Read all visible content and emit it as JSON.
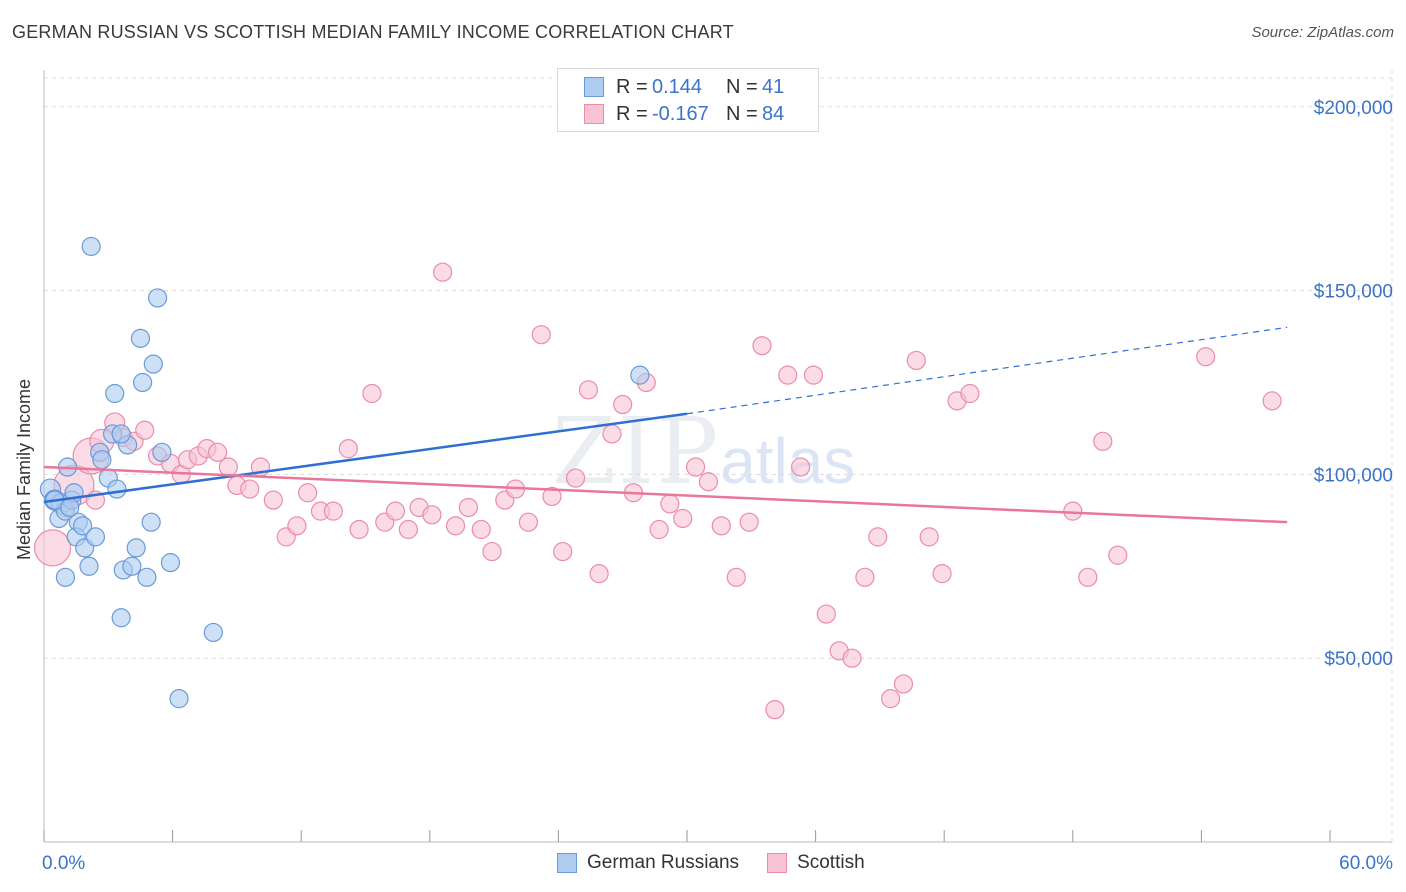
{
  "title": "GERMAN RUSSIAN VS SCOTTISH MEDIAN FAMILY INCOME CORRELATION CHART",
  "source": "Source: ZipAtlas.com",
  "watermark": {
    "zip": "ZIP",
    "atlas": "atlas"
  },
  "legend": {
    "r_label": "R =",
    "n_label": "N =",
    "rows": [
      {
        "r": "0.144",
        "n": "41",
        "fill": "#b9d3f3",
        "stroke": "#6f9fe0"
      },
      {
        "r": "-0.167",
        "n": "84",
        "fill": "#fbc9d9",
        "stroke": "#ec8fae"
      }
    ]
  },
  "bottom_legend": [
    "German Russians",
    "Scottish"
  ],
  "colors": {
    "blue_fill": "#aecbf0",
    "blue_stroke": "#6a9ad8",
    "blue_line": "#2f6fd1",
    "pink_fill": "#f8c3d4",
    "pink_stroke": "#ea8cab",
    "pink_line": "#e8769d",
    "axis_text": "#3b73c9",
    "grid": "#dcdcdc"
  },
  "chart_data": {
    "type": "scatter",
    "title": "GERMAN RUSSIAN VS SCOTTISH MEDIAN FAMILY INCOME CORRELATION CHART",
    "xlabel": "",
    "ylabel": "Median Family Income",
    "xlim": [
      0,
      60
    ],
    "ylim": [
      0,
      210000
    ],
    "x_tick_labels": [
      "0.0%",
      "60.0%"
    ],
    "y_ticks": [
      50000,
      100000,
      150000,
      200000
    ],
    "y_tick_labels": [
      "$50,000",
      "$100,000",
      "$150,000",
      "$200,000"
    ],
    "series": [
      {
        "name": "German Russians",
        "r": 0.144,
        "n": 41,
        "trend": {
          "x0": 0,
          "y0": 92500,
          "x1": 30,
          "y1": 116500,
          "dash_to_x": 58,
          "dash_y": 140000
        },
        "points": [
          [
            0.3,
            96000,
            10
          ],
          [
            0.5,
            93000,
            10
          ],
          [
            0.8,
            92000,
            10
          ],
          [
            0.7,
            88000,
            9
          ],
          [
            1.0,
            90000,
            9
          ],
          [
            1.1,
            102000,
            9
          ],
          [
            1.3,
            93000,
            9
          ],
          [
            1.4,
            95000,
            9
          ],
          [
            1.6,
            87000,
            9
          ],
          [
            1.5,
            83000,
            9
          ],
          [
            1.8,
            86000,
            9
          ],
          [
            1.9,
            80000,
            9
          ],
          [
            2.1,
            75000,
            9
          ],
          [
            2.4,
            83000,
            9
          ],
          [
            2.6,
            106000,
            9
          ],
          [
            2.7,
            104000,
            9
          ],
          [
            3.0,
            99000,
            9
          ],
          [
            3.2,
            111000,
            9
          ],
          [
            3.4,
            96000,
            9
          ],
          [
            3.6,
            61000,
            9
          ],
          [
            3.7,
            74000,
            9
          ],
          [
            3.9,
            108000,
            9
          ],
          [
            4.1,
            75000,
            9
          ],
          [
            4.3,
            80000,
            9
          ],
          [
            4.5,
            137000,
            9
          ],
          [
            4.6,
            125000,
            9
          ],
          [
            4.8,
            72000,
            9
          ],
          [
            5.0,
            87000,
            9
          ],
          [
            5.1,
            130000,
            9
          ],
          [
            5.3,
            148000,
            9
          ],
          [
            5.5,
            106000,
            9
          ],
          [
            5.9,
            76000,
            9
          ],
          [
            6.3,
            39000,
            9
          ],
          [
            7.9,
            57000,
            9
          ],
          [
            2.2,
            162000,
            9
          ],
          [
            3.3,
            122000,
            9
          ],
          [
            1.0,
            72000,
            9
          ],
          [
            27.8,
            127000,
            9
          ],
          [
            3.6,
            111000,
            9
          ],
          [
            0.5,
            93000,
            9
          ],
          [
            1.2,
            91000,
            9
          ]
        ]
      },
      {
        "name": "Scottish",
        "r": -0.167,
        "n": 84,
        "trend": {
          "x0": 0,
          "y0": 102000,
          "x1": 58,
          "y1": 87000
        },
        "points": [
          [
            0.4,
            80000,
            18
          ],
          [
            1.4,
            97000,
            20
          ],
          [
            2.2,
            105000,
            18
          ],
          [
            2.7,
            109000,
            12
          ],
          [
            3.3,
            114000,
            10
          ],
          [
            3.7,
            110000,
            9
          ],
          [
            4.2,
            109000,
            9
          ],
          [
            4.7,
            112000,
            9
          ],
          [
            5.3,
            105000,
            9
          ],
          [
            5.9,
            103000,
            9
          ],
          [
            6.4,
            100000,
            9
          ],
          [
            6.7,
            104000,
            9
          ],
          [
            7.2,
            105000,
            9
          ],
          [
            7.6,
            107000,
            9
          ],
          [
            8.1,
            106000,
            9
          ],
          [
            8.6,
            102000,
            9
          ],
          [
            9.0,
            97000,
            9
          ],
          [
            9.6,
            96000,
            9
          ],
          [
            10.1,
            102000,
            9
          ],
          [
            10.7,
            93000,
            9
          ],
          [
            11.3,
            83000,
            9
          ],
          [
            11.8,
            86000,
            9
          ],
          [
            12.3,
            95000,
            9
          ],
          [
            12.9,
            90000,
            9
          ],
          [
            13.5,
            90000,
            9
          ],
          [
            14.2,
            107000,
            9
          ],
          [
            14.7,
            85000,
            9
          ],
          [
            15.3,
            122000,
            9
          ],
          [
            15.9,
            87000,
            9
          ],
          [
            16.4,
            90000,
            9
          ],
          [
            17.0,
            85000,
            9
          ],
          [
            17.5,
            91000,
            9
          ],
          [
            18.1,
            89000,
            9
          ],
          [
            18.6,
            155000,
            9
          ],
          [
            19.2,
            86000,
            9
          ],
          [
            19.8,
            91000,
            9
          ],
          [
            20.4,
            85000,
            9
          ],
          [
            20.9,
            79000,
            9
          ],
          [
            21.5,
            93000,
            9
          ],
          [
            22.0,
            96000,
            9
          ],
          [
            22.6,
            87000,
            9
          ],
          [
            23.2,
            138000,
            9
          ],
          [
            23.7,
            94000,
            9
          ],
          [
            24.2,
            79000,
            9
          ],
          [
            24.8,
            99000,
            9
          ],
          [
            25.4,
            123000,
            9
          ],
          [
            25.9,
            73000,
            9
          ],
          [
            26.5,
            111000,
            9
          ],
          [
            27.0,
            119000,
            9
          ],
          [
            27.5,
            95000,
            9
          ],
          [
            28.1,
            125000,
            9
          ],
          [
            28.7,
            85000,
            9
          ],
          [
            29.2,
            92000,
            9
          ],
          [
            29.8,
            88000,
            9
          ],
          [
            30.4,
            102000,
            9
          ],
          [
            31.0,
            98000,
            9
          ],
          [
            31.6,
            86000,
            9
          ],
          [
            32.3,
            72000,
            9
          ],
          [
            32.9,
            87000,
            9
          ],
          [
            33.5,
            135000,
            9
          ],
          [
            34.1,
            36000,
            9
          ],
          [
            34.7,
            127000,
            9
          ],
          [
            35.3,
            102000,
            9
          ],
          [
            35.9,
            127000,
            9
          ],
          [
            36.5,
            62000,
            9
          ],
          [
            37.1,
            52000,
            9
          ],
          [
            37.7,
            50000,
            9
          ],
          [
            38.3,
            72000,
            9
          ],
          [
            38.9,
            83000,
            9
          ],
          [
            39.5,
            39000,
            9
          ],
          [
            40.1,
            43000,
            9
          ],
          [
            40.7,
            131000,
            9
          ],
          [
            41.3,
            83000,
            9
          ],
          [
            41.9,
            73000,
            9
          ],
          [
            42.6,
            120000,
            9
          ],
          [
            43.2,
            122000,
            9
          ],
          [
            48.0,
            90000,
            9
          ],
          [
            48.7,
            72000,
            9
          ],
          [
            49.4,
            109000,
            9
          ],
          [
            50.1,
            78000,
            9
          ],
          [
            54.2,
            132000,
            9
          ],
          [
            57.3,
            120000,
            9
          ],
          [
            1.0,
            91000,
            9
          ],
          [
            2.4,
            93000,
            9
          ]
        ]
      }
    ]
  }
}
